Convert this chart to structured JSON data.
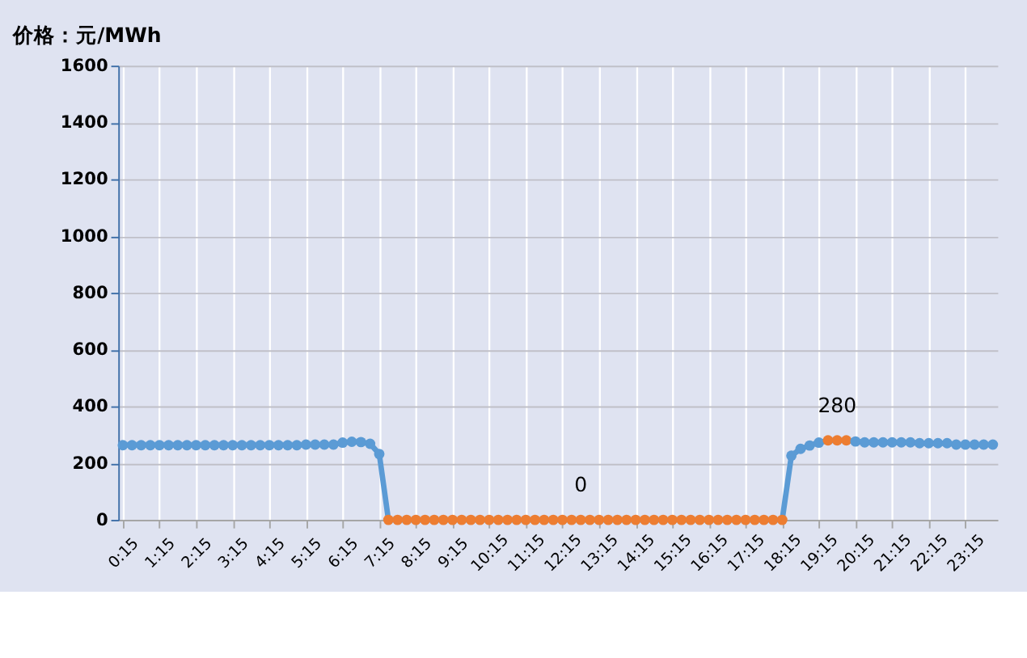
{
  "chart_data": {
    "type": "line",
    "title": "价格：元/MWh",
    "categories": [
      "0:15",
      null,
      null,
      null,
      "1:15",
      null,
      null,
      null,
      "2:15",
      null,
      null,
      null,
      "3:15",
      null,
      null,
      null,
      "4:15",
      null,
      null,
      null,
      "5:15",
      null,
      null,
      null,
      "6:15",
      null,
      null,
      null,
      "7:15",
      null,
      null,
      null,
      "8:15",
      null,
      null,
      null,
      "9:15",
      null,
      null,
      null,
      "10:15",
      null,
      null,
      null,
      "11:15",
      null,
      null,
      null,
      "12:15",
      null,
      null,
      null,
      "13:15",
      null,
      null,
      null,
      "14:15",
      null,
      null,
      null,
      "15:15",
      null,
      null,
      null,
      "16:15",
      null,
      null,
      null,
      "17:15",
      null,
      null,
      null,
      "18:15",
      null,
      null,
      null,
      "19:15",
      null,
      null,
      null,
      "20:15",
      null,
      null,
      null,
      "21:15",
      null,
      null,
      null,
      "22:15",
      null,
      null,
      null,
      "23:15",
      null,
      null,
      null
    ],
    "series": [
      {
        "color": "#5b9bd5",
        "values": [
          263,
          263,
          263,
          263,
          263,
          263,
          263,
          263,
          263,
          263,
          263,
          263,
          263,
          263,
          263,
          263,
          263,
          263,
          263,
          263,
          265,
          265,
          265,
          265,
          272,
          275,
          274,
          268,
          232,
          0,
          0,
          0,
          0,
          0,
          0,
          0,
          0,
          0,
          0,
          0,
          0,
          0,
          0,
          0,
          0,
          0,
          0,
          0,
          0,
          0,
          0,
          0,
          0,
          0,
          0,
          0,
          0,
          0,
          0,
          0,
          0,
          0,
          0,
          0,
          0,
          0,
          0,
          0,
          0,
          0,
          0,
          0,
          0,
          226,
          250,
          262,
          272,
          280,
          280,
          280,
          276,
          273,
          273,
          273,
          273,
          273,
          273,
          270,
          270,
          270,
          270,
          265,
          265,
          265,
          265,
          265
        ],
        "colors": [
          "#5b9bd5",
          "#5b9bd5",
          "#5b9bd5",
          "#5b9bd5",
          "#5b9bd5",
          "#5b9bd5",
          "#5b9bd5",
          "#5b9bd5",
          "#5b9bd5",
          "#5b9bd5",
          "#5b9bd5",
          "#5b9bd5",
          "#5b9bd5",
          "#5b9bd5",
          "#5b9bd5",
          "#5b9bd5",
          "#5b9bd5",
          "#5b9bd5",
          "#5b9bd5",
          "#5b9bd5",
          "#5b9bd5",
          "#5b9bd5",
          "#5b9bd5",
          "#5b9bd5",
          "#5b9bd5",
          "#5b9bd5",
          "#5b9bd5",
          "#5b9bd5",
          "#5b9bd5",
          "#ed7d31",
          "#ed7d31",
          "#ed7d31",
          "#ed7d31",
          "#ed7d31",
          "#ed7d31",
          "#ed7d31",
          "#ed7d31",
          "#ed7d31",
          "#ed7d31",
          "#ed7d31",
          "#ed7d31",
          "#ed7d31",
          "#ed7d31",
          "#ed7d31",
          "#ed7d31",
          "#ed7d31",
          "#ed7d31",
          "#ed7d31",
          "#ed7d31",
          "#ed7d31",
          "#ed7d31",
          "#ed7d31",
          "#ed7d31",
          "#ed7d31",
          "#ed7d31",
          "#ed7d31",
          "#ed7d31",
          "#ed7d31",
          "#ed7d31",
          "#ed7d31",
          "#ed7d31",
          "#ed7d31",
          "#ed7d31",
          "#ed7d31",
          "#ed7d31",
          "#ed7d31",
          "#ed7d31",
          "#ed7d31",
          "#ed7d31",
          "#ed7d31",
          "#ed7d31",
          "#ed7d31",
          "#ed7d31",
          "#5b9bd5",
          "#5b9bd5",
          "#5b9bd5",
          "#5b9bd5",
          "#ed7d31",
          "#ed7d31",
          "#ed7d31",
          "#5b9bd5",
          "#5b9bd5",
          "#5b9bd5",
          "#5b9bd5",
          "#5b9bd5",
          "#5b9bd5",
          "#5b9bd5",
          "#5b9bd5",
          "#5b9bd5",
          "#5b9bd5",
          "#5b9bd5",
          "#5b9bd5",
          "#5b9bd5",
          "#5b9bd5",
          "#5b9bd5",
          "#5b9bd5"
        ],
        "value_labels": [
          null,
          null,
          null,
          null,
          null,
          null,
          null,
          null,
          null,
          null,
          null,
          null,
          null,
          null,
          null,
          null,
          null,
          null,
          null,
          null,
          null,
          null,
          null,
          null,
          null,
          null,
          null,
          null,
          null,
          null,
          null,
          null,
          null,
          null,
          null,
          null,
          null,
          null,
          null,
          null,
          null,
          null,
          null,
          null,
          null,
          null,
          null,
          null,
          null,
          null,
          "0",
          null,
          null,
          null,
          null,
          null,
          null,
          null,
          null,
          null,
          null,
          null,
          null,
          null,
          null,
          null,
          null,
          null,
          null,
          null,
          null,
          null,
          null,
          null,
          null,
          null,
          null,
          null,
          "280",
          null,
          null,
          null,
          null,
          null,
          null,
          null,
          null,
          null,
          null,
          null,
          null,
          null,
          null,
          null,
          null,
          null
        ]
      }
    ],
    "ylim": [
      0,
      1600
    ],
    "yticks": [
      0,
      200,
      400,
      600,
      800,
      1000,
      1200,
      1400,
      1600
    ],
    "grid": true,
    "marker": "circle",
    "line_style": "solid"
  }
}
